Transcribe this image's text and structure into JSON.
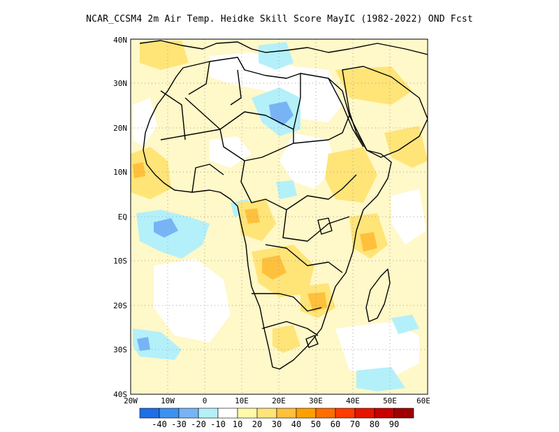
{
  "title": "NCAR_CCSM4 2m Air Temp. Heidke Skill Score MayIC (1982-2022) OND Fcst",
  "lon_labels": [
    "20W",
    "10W",
    "0",
    "10E",
    "20E",
    "30E",
    "40E",
    "50E",
    "60E"
  ],
  "lat_labels": [
    "40N",
    "30N",
    "20N",
    "10N",
    "EQ",
    "10S",
    "20S",
    "30S",
    "40S"
  ],
  "colorbar": {
    "colors": [
      "#1e6ee6",
      "#3c91f0",
      "#78b4f5",
      "#b4f0fa",
      "#ffffff",
      "#fffaaa",
      "#ffe478",
      "#ffc03c",
      "#ffa000",
      "#ff6e00",
      "#ff3c00",
      "#e61400",
      "#c80000",
      "#a00000"
    ],
    "labels": [
      "-40",
      "-30",
      "-20",
      "-10",
      "10",
      "20",
      "30",
      "40",
      "50",
      "60",
      "70",
      "80",
      "90"
    ]
  }
}
